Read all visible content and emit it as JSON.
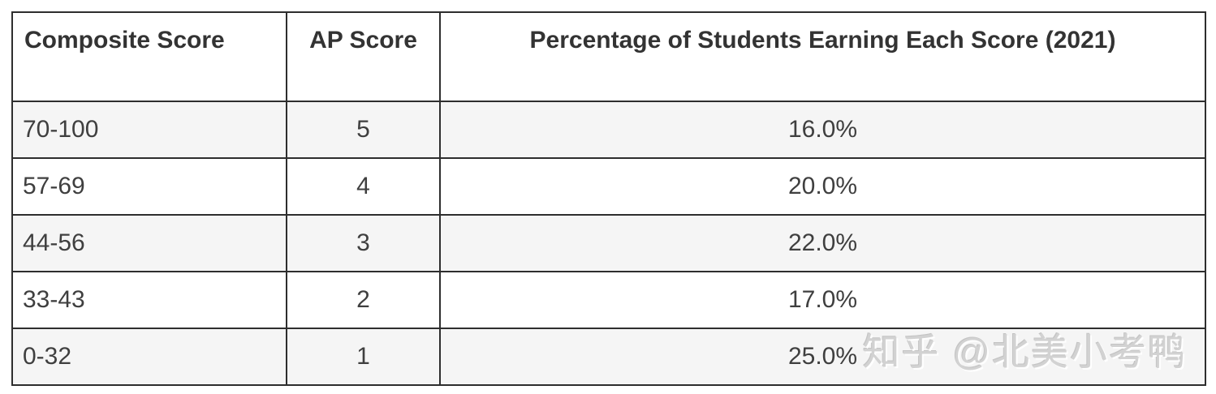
{
  "chart_data": {
    "type": "table",
    "columns": [
      "Composite Score",
      "AP Score",
      "Percentage of Students Earning Each Score (2021)"
    ],
    "rows": [
      [
        "70-100",
        "5",
        "16.0%"
      ],
      [
        "57-69",
        "4",
        "20.0%"
      ],
      [
        "44-56",
        "3",
        "22.0%"
      ],
      [
        "33-43",
        "2",
        "17.0%"
      ],
      [
        "0-32",
        "1",
        "25.0%"
      ]
    ]
  },
  "watermark": {
    "text": "知乎 @北美小考鸭"
  },
  "colors": {
    "border": "#2e2e2e",
    "stripe": "#f5f5f5",
    "header_text": "#333333",
    "body_text": "#3f3f3f",
    "watermark": "#d2d2d2",
    "page_bg": "#ffffff"
  }
}
